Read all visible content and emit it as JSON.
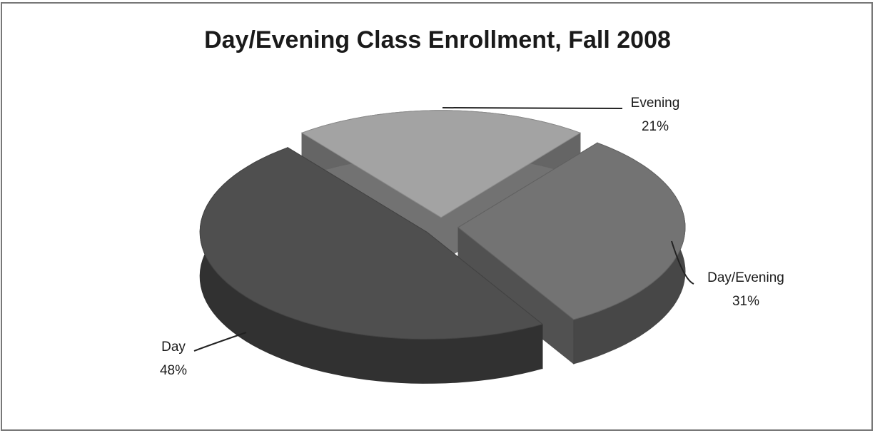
{
  "chart_data": {
    "type": "pie3d",
    "title": "Day/Evening Class Enrollment, Fall 2008",
    "categories": [
      "Evening",
      "Day/Evening",
      "Day"
    ],
    "values": [
      21,
      31,
      48
    ],
    "value_labels": [
      "21%",
      "31%",
      "48%"
    ],
    "colors": [
      "#a3a3a3",
      "#737373",
      "#4f4f4f"
    ]
  }
}
